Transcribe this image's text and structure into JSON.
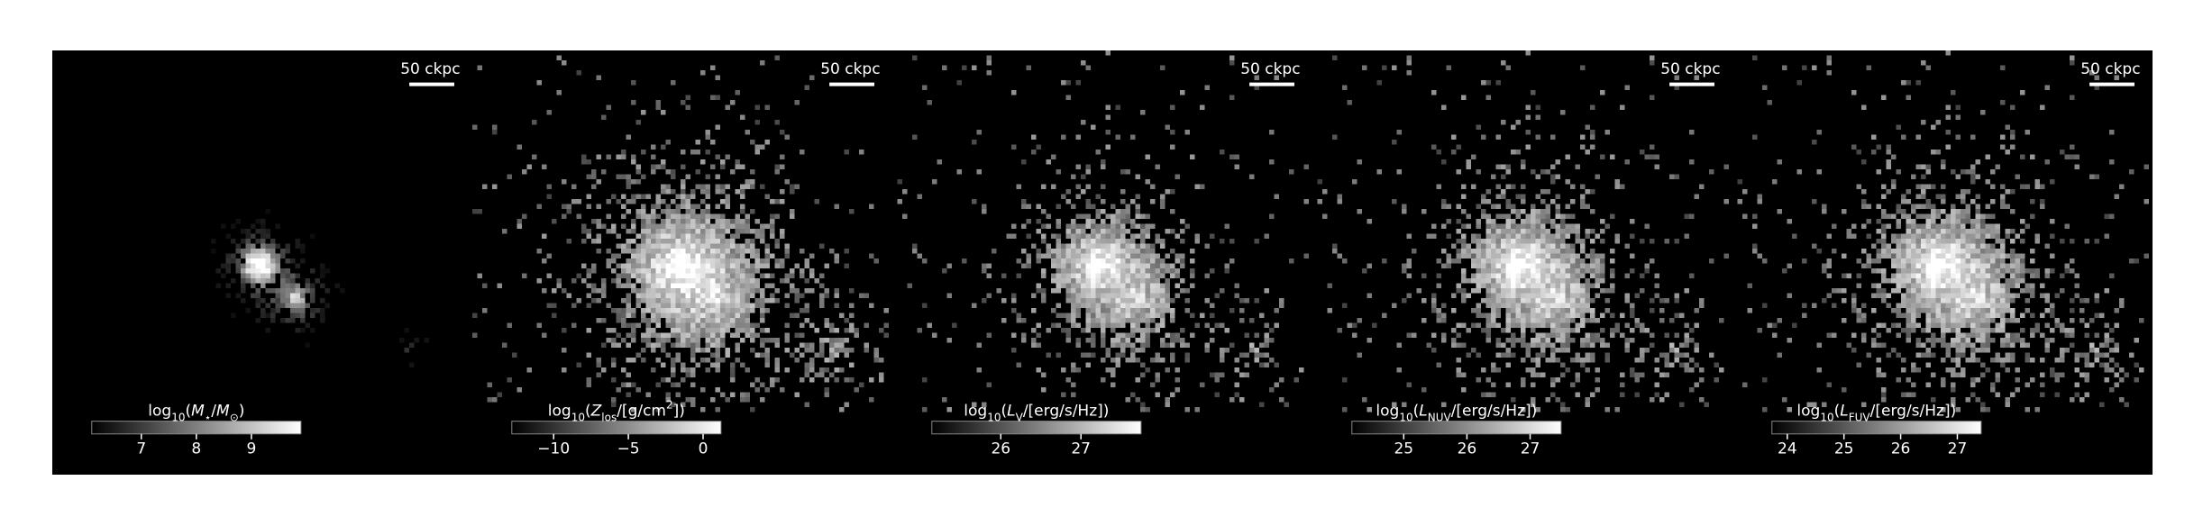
{
  "panels": [
    {
      "scale_bar": "50 ckpc",
      "colorbar": {
        "label": [
          {
            "text": "log"
          },
          {
            "text": "10",
            "sub": true
          },
          {
            "text": "("
          },
          {
            "text": "M",
            "italic": true
          },
          {
            "text": "⋆",
            "sub": true
          },
          {
            "text": "/"
          },
          {
            "text": "M",
            "italic": true
          },
          {
            "text": "⊙",
            "sub": true
          },
          {
            "text": ")"
          }
        ],
        "range": [
          6.1,
          9.9
        ],
        "ticks": [
          7,
          8,
          9
        ]
      }
    },
    {
      "scale_bar": "50 ckpc",
      "colorbar": {
        "label": [
          {
            "text": "log"
          },
          {
            "text": "10",
            "sub": true
          },
          {
            "text": "("
          },
          {
            "text": "Z",
            "italic": true
          },
          {
            "text": "los",
            "sub": true
          },
          {
            "text": "/[g/cm"
          },
          {
            "text": "2",
            "sup": true
          },
          {
            "text": "])"
          }
        ],
        "range": [
          -12.8,
          1.2
        ],
        "ticks": [
          {
            "value": -10,
            "label": "−10"
          },
          {
            "value": -5,
            "label": "−5"
          },
          0
        ]
      }
    },
    {
      "scale_bar": "50 ckpc",
      "colorbar": {
        "label": [
          {
            "text": "log"
          },
          {
            "text": "10",
            "sub": true
          },
          {
            "text": "("
          },
          {
            "text": "L",
            "italic": true
          },
          {
            "text": "V",
            "sub": true
          },
          {
            "text": "/[erg/s/Hz])"
          }
        ],
        "range": [
          25.14,
          27.75
        ],
        "ticks": [
          26,
          27
        ]
      }
    },
    {
      "scale_bar": "50 ckpc",
      "colorbar": {
        "label": [
          {
            "text": "log"
          },
          {
            "text": "10",
            "sub": true
          },
          {
            "text": "("
          },
          {
            "text": "L",
            "italic": true
          },
          {
            "text": "NUV",
            "sub": true
          },
          {
            "text": "/[erg/s/Hz])"
          }
        ],
        "range": [
          24.18,
          27.49
        ],
        "ticks": [
          25,
          26,
          27
        ]
      }
    },
    {
      "scale_bar": "50 ckpc",
      "colorbar": {
        "label": [
          {
            "text": "log"
          },
          {
            "text": "10",
            "sub": true
          },
          {
            "text": "("
          },
          {
            "text": "L",
            "italic": true
          },
          {
            "text": "FUV",
            "sub": true
          },
          {
            "text": "/[erg/s/Hz])"
          }
        ],
        "range": [
          23.73,
          27.42
        ],
        "ticks": [
          24,
          25,
          26,
          27
        ]
      }
    }
  ]
}
